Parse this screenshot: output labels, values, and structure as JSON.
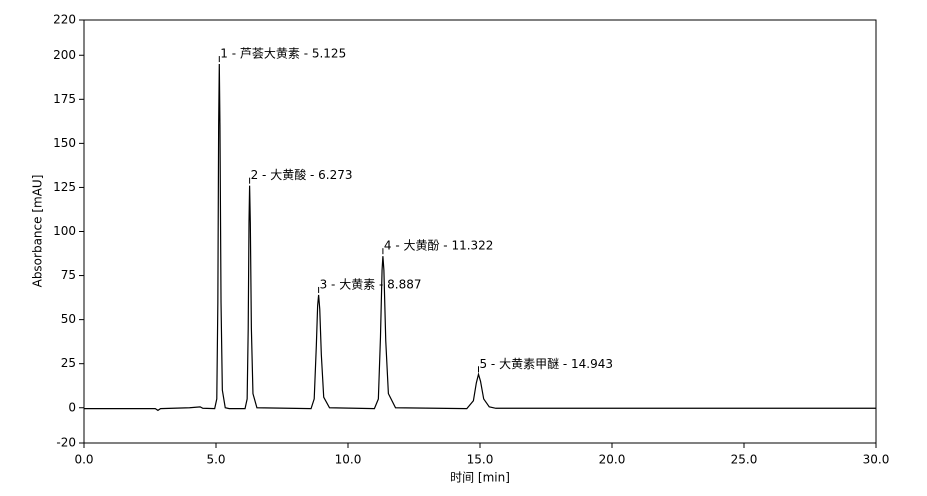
{
  "chart_data": {
    "type": "line",
    "x_label": "时间 [min]",
    "y_label": "Absorbance [mAU]",
    "xlim": [
      0,
      30
    ],
    "xticks": [
      {
        "value": 0,
        "label": "0.0"
      },
      {
        "value": 5,
        "label": "5.0"
      },
      {
        "value": 10,
        "label": "10.0"
      },
      {
        "value": 15,
        "label": "15.0"
      },
      {
        "value": 20,
        "label": "20.0"
      },
      {
        "value": 25,
        "label": "25.0"
      },
      {
        "value": 30,
        "label": "30.0"
      }
    ],
    "ylim": [
      -20,
      220
    ],
    "yticks": [
      -20,
      0,
      25,
      50,
      75,
      100,
      125,
      150,
      175,
      200,
      220
    ],
    "grid": false,
    "series": [
      {
        "color": "#000000",
        "x": [
          0,
          2.7,
          2.8,
          2.9,
          4.0,
          4.4,
          4.5,
          4.95,
          5.03,
          5.07,
          5.1,
          5.125,
          5.15,
          5.19,
          5.24,
          5.35,
          5.5,
          6.1,
          6.18,
          6.22,
          6.25,
          6.273,
          6.3,
          6.34,
          6.4,
          6.55,
          8.6,
          8.72,
          8.8,
          8.85,
          8.887,
          8.93,
          8.99,
          9.08,
          9.3,
          11.0,
          11.15,
          11.23,
          11.29,
          11.322,
          11.36,
          11.43,
          11.53,
          11.8,
          14.5,
          14.75,
          14.86,
          14.943,
          15.02,
          15.14,
          15.35,
          15.6,
          30
        ],
        "values": [
          -0.5,
          -0.5,
          -1.5,
          -0.5,
          0,
          0.5,
          -0.3,
          -0.5,
          5,
          60,
          160,
          195,
          160,
          60,
          10,
          0,
          -0.5,
          -0.5,
          5,
          45,
          105,
          126,
          105,
          45,
          8,
          0,
          -0.5,
          5,
          35,
          58,
          64,
          56,
          30,
          6,
          0,
          -0.5,
          5,
          40,
          78,
          86,
          78,
          38,
          8,
          0,
          -0.5,
          4,
          14,
          19,
          15,
          5,
          0.5,
          -0.3,
          -0.3
        ]
      }
    ],
    "annotations": [
      {
        "text": "1 - 芦荟大黄素 - 5.125",
        "x": 5.125,
        "y": 195
      },
      {
        "text": "2 - 大黄酸 - 6.273",
        "x": 6.273,
        "y": 126
      },
      {
        "text": "3 - 大黄素 - 8.887",
        "x": 8.887,
        "y": 64
      },
      {
        "text": "4 - 大黄酚 - 11.322",
        "x": 11.322,
        "y": 86
      },
      {
        "text": "5 - 大黄素甲醚 - 14.943",
        "x": 14.943,
        "y": 19
      }
    ]
  }
}
